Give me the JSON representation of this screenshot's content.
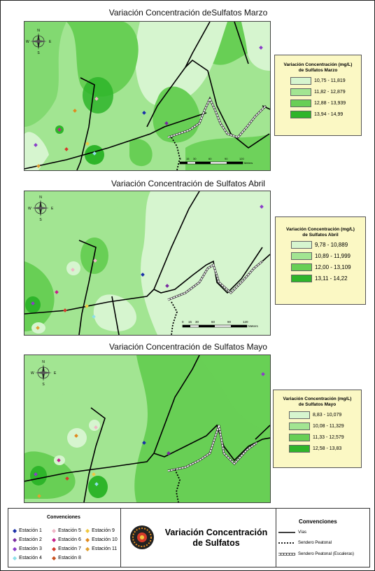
{
  "maps": [
    {
      "title": "Variación Concentración deSulfatos Marzo",
      "legend_title": "Variación Concentración (mg/L)",
      "legend_subtitle": "de Sulfatos Marzo",
      "classes": [
        {
          "label": "10,75 - 11,819",
          "color": "#d6f5cf"
        },
        {
          "label": "11,82 - 12,879",
          "color": "#a2e592"
        },
        {
          "label": "12,88 - 13,939",
          "color": "#68cf55"
        },
        {
          "label": "13,94 - 14,99",
          "color": "#2eb52a"
        }
      ],
      "scale_labels": [
        "0",
        "15",
        "30",
        "60",
        "90",
        "120"
      ],
      "scale_unit": "Meters"
    },
    {
      "title": "Variación Concentración de Sulfatos Abril",
      "legend_title": "Variación Concentración (mg/L)",
      "legend_subtitle": "de Sulfatos Abril",
      "classes": [
        {
          "label": "9,78 - 10,889",
          "color": "#d6f5cf"
        },
        {
          "label": "10,89 - 11,999",
          "color": "#a2e592"
        },
        {
          "label": "12,00 - 13,109",
          "color": "#68cf55"
        },
        {
          "label": "13,11 - 14,22",
          "color": "#2eb52a"
        }
      ],
      "scale_labels": [
        "0",
        "15",
        "30",
        "60",
        "90",
        "120"
      ],
      "scale_unit": "Meters"
    },
    {
      "title": "Variación Concentración de Sulfatos Mayo",
      "legend_title": "Variación Concentración (mg/L)",
      "legend_subtitle": "de Sulfatos Mayo",
      "classes": [
        {
          "label": "8,83 - 10,079",
          "color": "#d6f5cf"
        },
        {
          "label": "10,08 - 11,329",
          "color": "#a2e592"
        },
        {
          "label": "11,33 - 12,579",
          "color": "#68cf55"
        },
        {
          "label": "12,58 - 13,83",
          "color": "#2eb52a"
        }
      ]
    }
  ],
  "north_arrow": {
    "n": "N",
    "s": "S",
    "e": "E",
    "w": "W"
  },
  "stations_legend": {
    "title": "Convenciones",
    "items": [
      {
        "label": "Estación 1",
        "color": "#1a2fa8"
      },
      {
        "label": "Estación 2",
        "color": "#7a2ba0"
      },
      {
        "label": "Estación 3",
        "color": "#8a3cc8"
      },
      {
        "label": "Estación 4",
        "color": "#8ee0e8"
      },
      {
        "label": "Estación 5",
        "color": "#f0b6c6"
      },
      {
        "label": "Estación 6",
        "color": "#c81e8c"
      },
      {
        "label": "Estación 7",
        "color": "#d43a2a"
      },
      {
        "label": "Estación 8",
        "color": "#c8501e"
      },
      {
        "label": "Estación 9",
        "color": "#f0c840"
      },
      {
        "label": "Estación 10",
        "color": "#e08a1e"
      },
      {
        "label": "Estación 11",
        "color": "#e0a030"
      }
    ]
  },
  "main_title_line1": "Variación Concentración",
  "main_title_line2": "de Sulfatos",
  "lines_legend": {
    "title": "Convenciones",
    "items": [
      {
        "label": "Vías"
      },
      {
        "label": "Sendero Peatonal"
      },
      {
        "label": "Sendero Peatonal (Escaleras)"
      }
    ]
  }
}
